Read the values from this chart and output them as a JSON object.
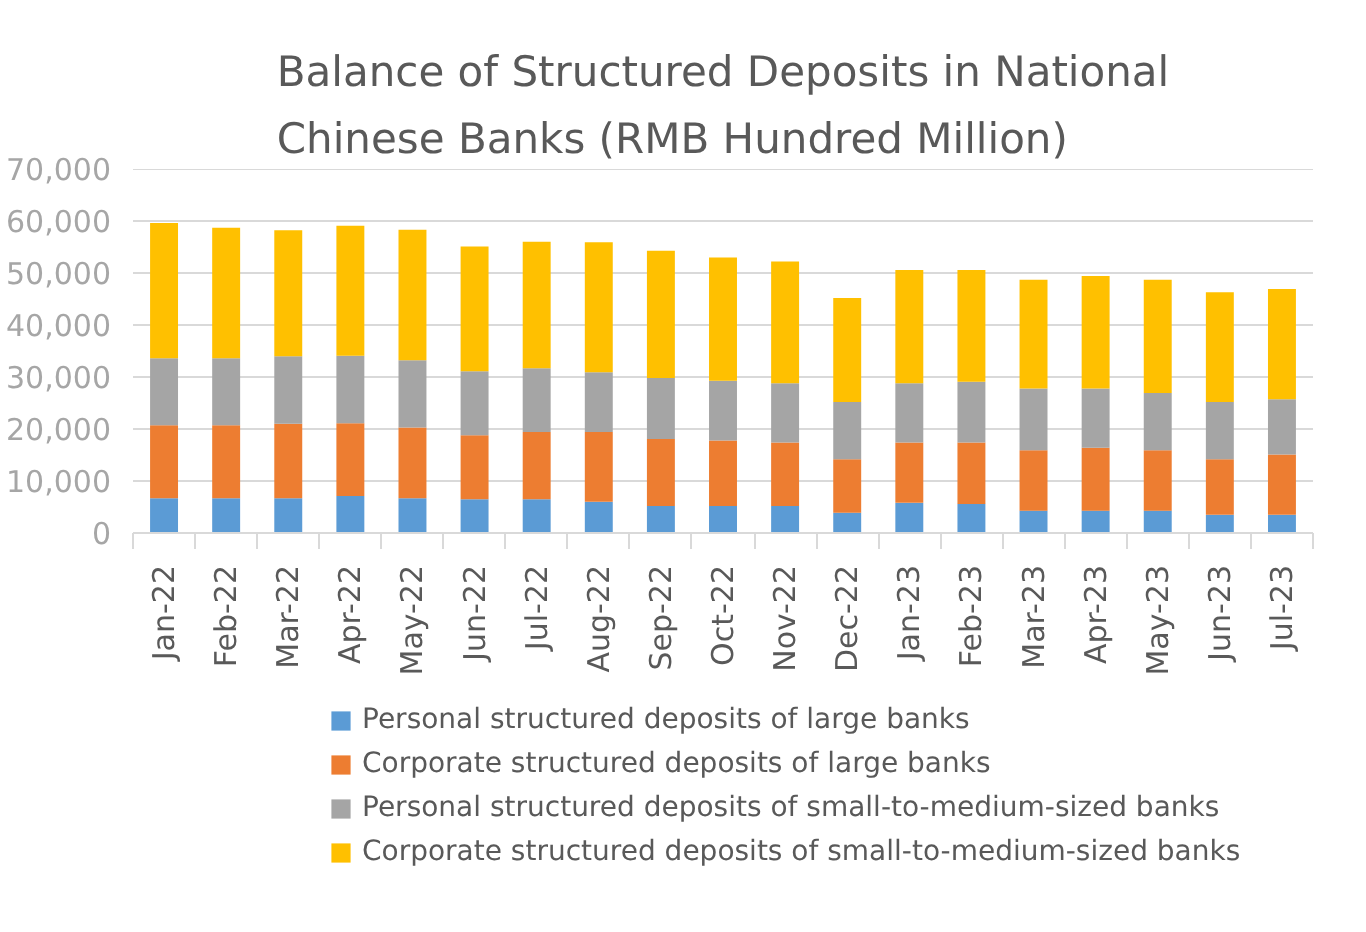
{
  "chart_data": {
    "type": "bar",
    "title": "Balance of Structured Deposits in National Chinese Banks (RMB Hundred Million)",
    "categories": [
      "Jan-22",
      "Feb-22",
      "Mar-22",
      "Apr-22",
      "May-22",
      "Jun-22",
      "Jul-22",
      "Aug-22",
      "Sep-22",
      "Oct-22",
      "Nov-22",
      "Dec-22",
      "Jan-23",
      "Feb-23",
      "Mar-23",
      "Apr-23",
      "May-23",
      "Jun-23",
      "Jul-23"
    ],
    "series": [
      {
        "name": "Personal structured deposits of large banks",
        "color": "#5b9bd5",
        "values": [
          6700,
          6700,
          6700,
          7100,
          6700,
          6500,
          6500,
          6000,
          5200,
          5200,
          5200,
          3900,
          5800,
          5600,
          4300,
          4300,
          4300,
          3500,
          3500
        ]
      },
      {
        "name": "Corporate structured deposits of large banks",
        "color": "#ed7d31",
        "values": [
          14000,
          14000,
          14300,
          14000,
          13600,
          12300,
          12900,
          13400,
          12900,
          12600,
          12200,
          10300,
          11600,
          11800,
          11600,
          12100,
          11600,
          10700,
          11600
        ]
      },
      {
        "name": "Personal structured deposits of small-to-medium-sized banks",
        "color": "#a5a5a5",
        "values": [
          12900,
          12900,
          13000,
          13000,
          12900,
          12300,
          12300,
          11500,
          11700,
          11500,
          11400,
          11000,
          11400,
          11700,
          11900,
          11400,
          11000,
          11000,
          10600
        ]
      },
      {
        "name": "Corporate structured deposits of small-to-medium-sized banks",
        "color": "#ffc000",
        "values": [
          26000,
          25100,
          24200,
          25000,
          25100,
          24000,
          24300,
          25000,
          24500,
          23700,
          23400,
          20000,
          21800,
          21500,
          20900,
          21600,
          21800,
          21100,
          21200
        ]
      }
    ],
    "stacked": true,
    "ylim": [
      0,
      70000
    ],
    "yticks": [
      0,
      {
        "value": 10000,
        "label": "10,000"
      },
      {
        "value": 20000,
        "label": "20,000"
      },
      {
        "value": 30000,
        "label": "30,000"
      },
      {
        "value": 40000,
        "label": "40,000"
      },
      {
        "value": 50000,
        "label": "50,000"
      },
      {
        "value": 60000,
        "label": "60,000"
      },
      {
        "value": 70000,
        "label": "70,000"
      }
    ],
    "grid": "y",
    "legend": "bottom"
  }
}
